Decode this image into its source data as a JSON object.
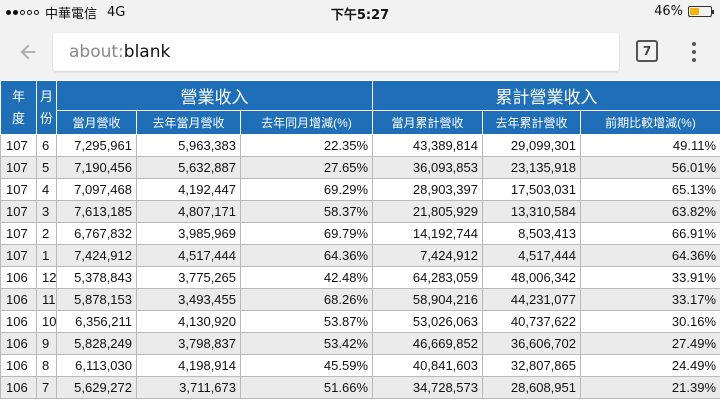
{
  "status_bar": {
    "carrier": "中華電信",
    "network": "4G",
    "time": "下午5:27",
    "battery_text": "46%",
    "battery_level": 0.46,
    "battery_color": "#f4b400"
  },
  "browser": {
    "url_scheme": "about:",
    "url_rest": "blank",
    "tab_count": "7",
    "back_icon": "arrow-left-icon",
    "menu_icon": "more-vert-icon"
  },
  "table": {
    "header_color": "#1f6fb8",
    "headers": {
      "year_top": "年",
      "year_bottom": "度",
      "month_top": "月",
      "month_bottom": "份",
      "group_revenue": "營業收入",
      "group_cumulative": "累計營業收入",
      "col_monthly": "當月營收",
      "col_last_year_monthly": "去年當月營收",
      "col_yoy": "去年同月增減(%)",
      "col_cumulative": "當月累計營收",
      "col_last_year_cumulative": "去年累計營收",
      "col_period_change": "前期比較增減(%)"
    },
    "rows": [
      [
        "107",
        "6",
        "7,295,961",
        "5,963,383",
        "22.35%",
        "43,389,814",
        "29,099,301",
        "49.11%"
      ],
      [
        "107",
        "5",
        "7,190,456",
        "5,632,887",
        "27.65%",
        "36,093,853",
        "23,135,918",
        "56.01%"
      ],
      [
        "107",
        "4",
        "7,097,468",
        "4,192,447",
        "69.29%",
        "28,903,397",
        "17,503,031",
        "65.13%"
      ],
      [
        "107",
        "3",
        "7,613,185",
        "4,807,171",
        "58.37%",
        "21,805,929",
        "13,310,584",
        "63.82%"
      ],
      [
        "107",
        "2",
        "6,767,832",
        "3,985,969",
        "69.79%",
        "14,192,744",
        "8,503,413",
        "66.91%"
      ],
      [
        "107",
        "1",
        "7,424,912",
        "4,517,444",
        "64.36%",
        "7,424,912",
        "4,517,444",
        "64.36%"
      ],
      [
        "106",
        "12",
        "5,378,843",
        "3,775,265",
        "42.48%",
        "64,283,059",
        "48,006,342",
        "33.91%"
      ],
      [
        "106",
        "11",
        "5,878,153",
        "3,493,455",
        "68.26%",
        "58,904,216",
        "44,231,077",
        "33.17%"
      ],
      [
        "106",
        "10",
        "6,356,211",
        "4,130,920",
        "53.87%",
        "53,026,063",
        "40,737,622",
        "30.16%"
      ],
      [
        "106",
        "9",
        "5,828,249",
        "3,798,837",
        "53.42%",
        "46,669,852",
        "36,606,702",
        "27.49%"
      ],
      [
        "106",
        "8",
        "6,113,030",
        "4,198,914",
        "45.59%",
        "40,841,603",
        "32,807,865",
        "24.49%"
      ],
      [
        "106",
        "7",
        "5,629,272",
        "3,711,673",
        "51.66%",
        "34,728,573",
        "28,608,951",
        "21.39%"
      ]
    ]
  }
}
